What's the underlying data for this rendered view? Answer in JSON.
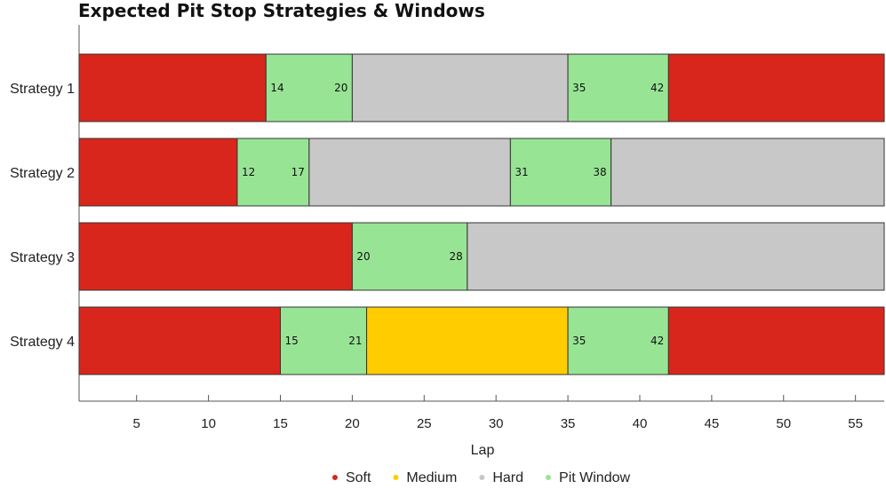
{
  "chart_data": {
    "type": "bar",
    "orientation": "horizontal-stacked",
    "title": "Expected Pit Stop Strategies & Windows",
    "xlabel": "Lap",
    "ylabel": "",
    "xlim": [
      1,
      57
    ],
    "xticks": [
      5,
      10,
      15,
      20,
      25,
      30,
      35,
      40,
      45,
      50,
      55
    ],
    "grid": false,
    "legend_position": "bottom",
    "colors": {
      "Soft": "#d9261c",
      "Medium": "#ffcc00",
      "Hard": "#c8c8c8",
      "Pit Window": "#98e495"
    },
    "legend": [
      "Soft",
      "Medium",
      "Hard",
      "Pit Window"
    ],
    "strategies": [
      {
        "name": "Strategy 1",
        "segments": [
          {
            "compound": "Soft",
            "start": 1,
            "end": 14
          },
          {
            "compound": "Pit Window",
            "start": 14,
            "end": 20
          },
          {
            "compound": "Hard",
            "start": 20,
            "end": 35
          },
          {
            "compound": "Pit Window",
            "start": 35,
            "end": 42
          },
          {
            "compound": "Soft",
            "start": 42,
            "end": 57
          }
        ]
      },
      {
        "name": "Strategy 2",
        "segments": [
          {
            "compound": "Soft",
            "start": 1,
            "end": 12
          },
          {
            "compound": "Pit Window",
            "start": 12,
            "end": 17
          },
          {
            "compound": "Hard",
            "start": 17,
            "end": 31
          },
          {
            "compound": "Pit Window",
            "start": 31,
            "end": 38
          },
          {
            "compound": "Hard",
            "start": 38,
            "end": 57
          }
        ]
      },
      {
        "name": "Strategy 3",
        "segments": [
          {
            "compound": "Soft",
            "start": 1,
            "end": 20
          },
          {
            "compound": "Pit Window",
            "start": 20,
            "end": 28
          },
          {
            "compound": "Hard",
            "start": 28,
            "end": 57
          }
        ]
      },
      {
        "name": "Strategy 4",
        "segments": [
          {
            "compound": "Soft",
            "start": 1,
            "end": 15
          },
          {
            "compound": "Pit Window",
            "start": 15,
            "end": 21
          },
          {
            "compound": "Medium",
            "start": 21,
            "end": 35
          },
          {
            "compound": "Pit Window",
            "start": 35,
            "end": 42
          },
          {
            "compound": "Soft",
            "start": 42,
            "end": 57
          }
        ]
      }
    ]
  }
}
